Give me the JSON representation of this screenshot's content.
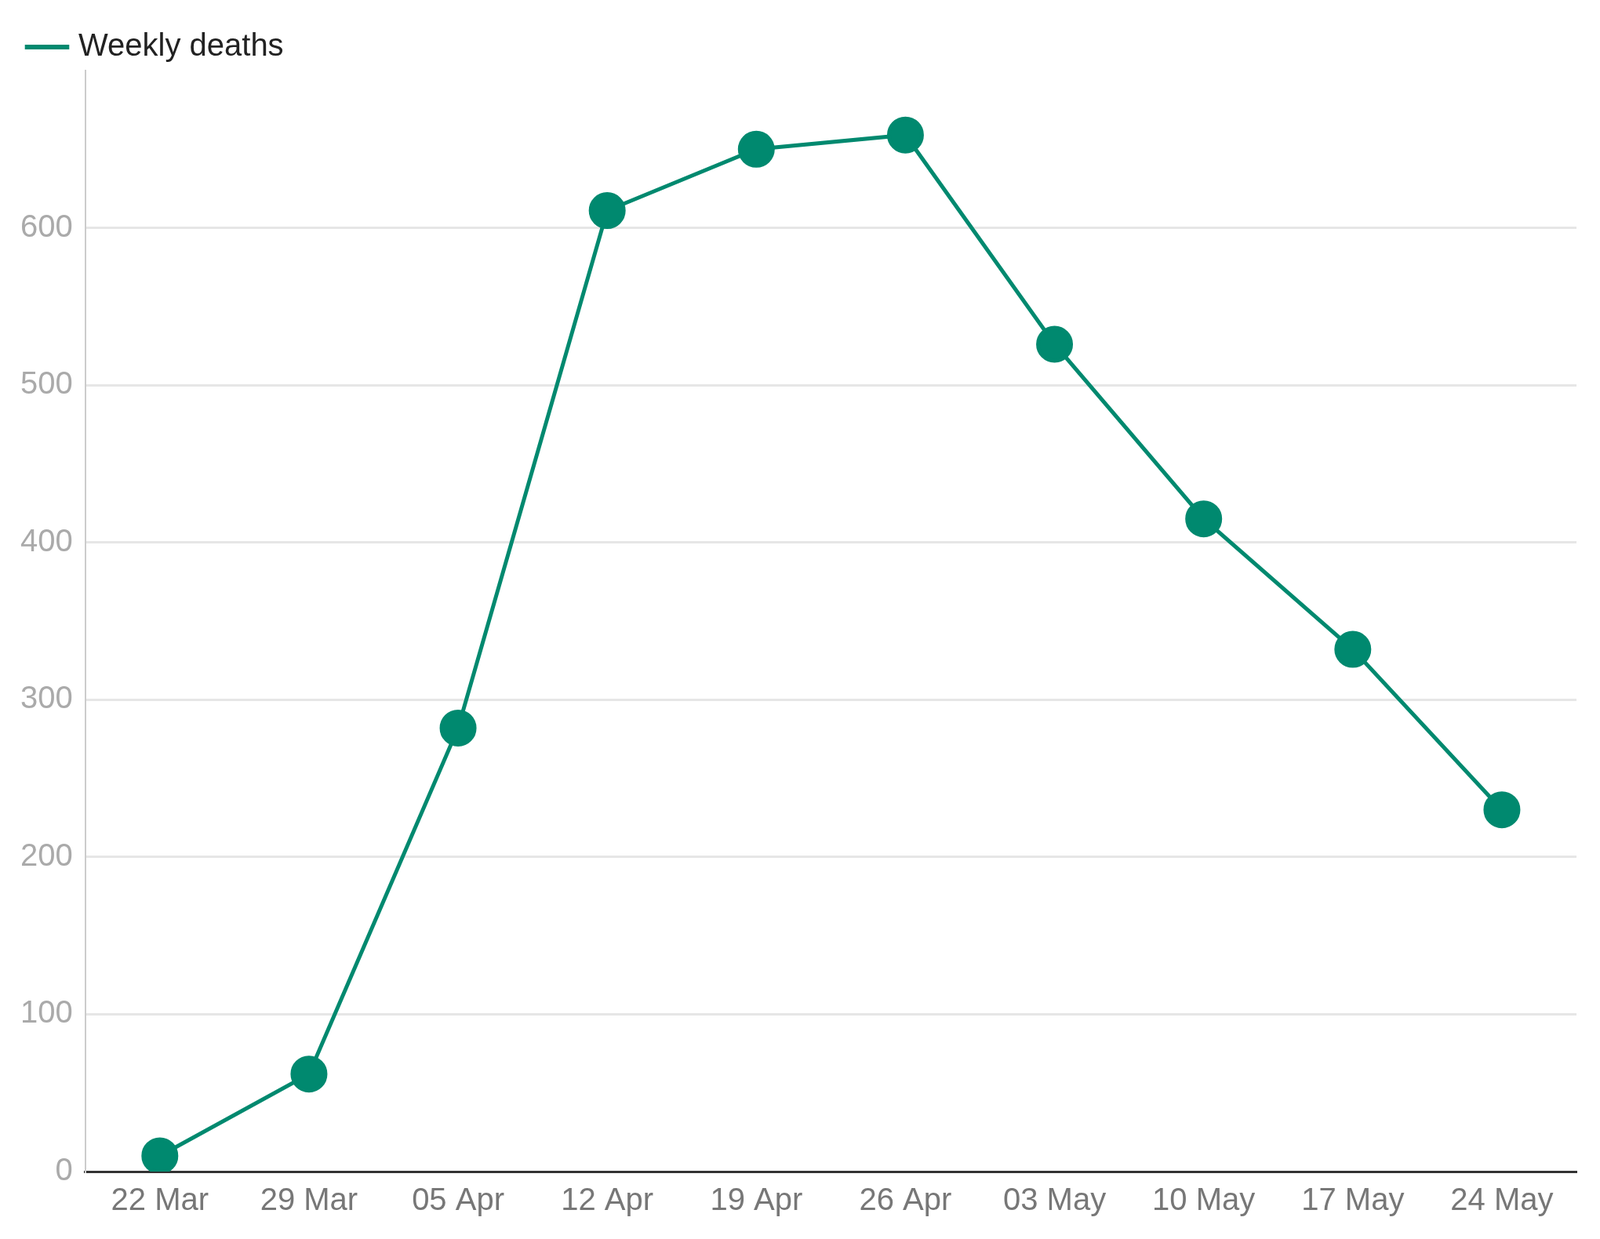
{
  "chart_data": {
    "type": "line",
    "categories": [
      "22 Mar",
      "29 Mar",
      "05 Apr",
      "12 Apr",
      "19 Apr",
      "26 Apr",
      "03 May",
      "10 May",
      "17 May",
      "24 May"
    ],
    "series": [
      {
        "name": "Weekly deaths",
        "color": "#00896f",
        "marker": "circle",
        "values": [
          10,
          62,
          282,
          611,
          650,
          659,
          526,
          415,
          332,
          230
        ]
      }
    ],
    "ylim": [
      0,
      700
    ],
    "yticks": [
      0,
      100,
      200,
      300,
      400,
      500,
      600
    ],
    "grid": true,
    "legend": "top-left"
  }
}
